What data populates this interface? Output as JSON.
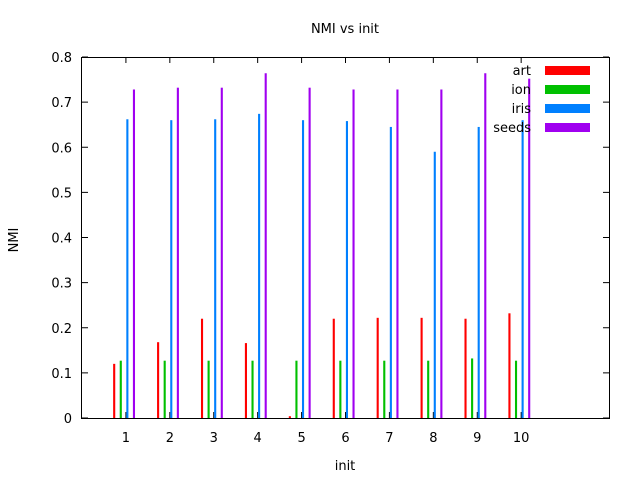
{
  "chart_data": {
    "type": "bar",
    "title": "NMI vs init",
    "xlabel": "init",
    "ylabel": "NMI",
    "categories": [
      "1",
      "2",
      "3",
      "4",
      "5",
      "6",
      "7",
      "8",
      "9",
      "10"
    ],
    "ylim": [
      0,
      0.8
    ],
    "yticks": [
      "0",
      "0.1",
      "0.2",
      "0.3",
      "0.4",
      "0.5",
      "0.6",
      "0.7",
      "0.8"
    ],
    "xlim": [
      0,
      12
    ],
    "grid": false,
    "legend_position": "top-right",
    "series": [
      {
        "name": "art",
        "color": "#ff0000",
        "values": [
          0.12,
          0.168,
          0.22,
          0.166,
          0.004,
          0.22,
          0.222,
          0.222,
          0.22,
          0.232
        ]
      },
      {
        "name": "ion",
        "color": "#00c000",
        "values": [
          0.127,
          0.127,
          0.127,
          0.127,
          0.127,
          0.127,
          0.127,
          0.127,
          0.132,
          0.127
        ]
      },
      {
        "name": "iris",
        "color": "#0080ff",
        "values": [
          0.662,
          0.66,
          0.662,
          0.674,
          0.66,
          0.658,
          0.645,
          0.59,
          0.645,
          0.66
        ]
      },
      {
        "name": "seeds",
        "color": "#a000f0",
        "values": [
          0.728,
          0.732,
          0.732,
          0.764,
          0.732,
          0.728,
          0.728,
          0.728,
          0.764,
          0.752
        ]
      }
    ]
  }
}
